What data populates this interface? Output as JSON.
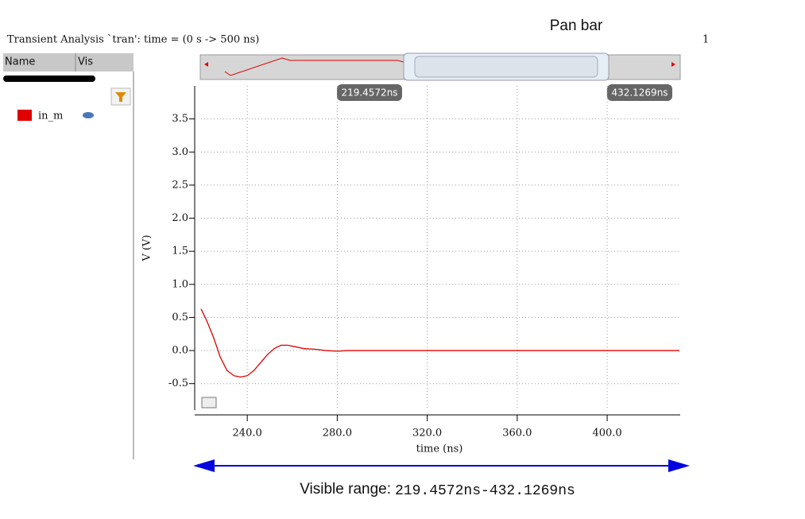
{
  "window": {
    "header": "Transient Analysis `tran': time = (0 s -> 500 ns)",
    "page_number": "1",
    "panel": {
      "name_column": "Name",
      "vis_column": "Vis"
    },
    "pan_bar": {
      "label": "Pan bar",
      "start_label": "219.4572ns",
      "end_label": "432.1269ns"
    },
    "visible_range": {
      "label": "Visible range:",
      "range": "219.4572ns-432.1269ns"
    }
  },
  "chart_data": {
    "type": "line",
    "x_label": "time (ns)",
    "y_label": "V (V)",
    "x": [
      219.4572,
      222,
      225,
      228,
      231,
      234,
      237,
      240,
      243,
      246,
      249,
      252,
      255,
      258,
      261,
      265,
      270,
      275,
      280,
      285,
      290,
      432.1269
    ],
    "series": [
      {
        "name": "in_m",
        "color": "#e00000",
        "values": [
          0.63,
          0.45,
          0.2,
          -0.1,
          -0.3,
          -0.38,
          -0.4,
          -0.38,
          -0.3,
          -0.18,
          -0.06,
          0.03,
          0.08,
          0.08,
          0.06,
          0.03,
          0.02,
          0.0,
          -0.01,
          0.0,
          0.0,
          0.0
        ]
      }
    ],
    "xlim": [
      219.4572,
      432.1269
    ],
    "ylim": [
      -0.9,
      4.0
    ],
    "xticks": [
      {
        "value": 240,
        "label": "240.0"
      },
      {
        "value": 280,
        "label": "280.0"
      },
      {
        "value": 320,
        "label": "320.0"
      },
      {
        "value": 360,
        "label": "360.0"
      },
      {
        "value": 400,
        "label": "400.0"
      }
    ],
    "yticks": [
      -0.5,
      {
        "value": 0,
        "label": "0.0"
      },
      0.5,
      {
        "value": 1,
        "label": "1.0"
      },
      1.5,
      {
        "value": 2,
        "label": "2.0"
      },
      2.5,
      {
        "value": 3,
        "label": "3.0"
      },
      3.5
    ],
    "grid": true
  }
}
